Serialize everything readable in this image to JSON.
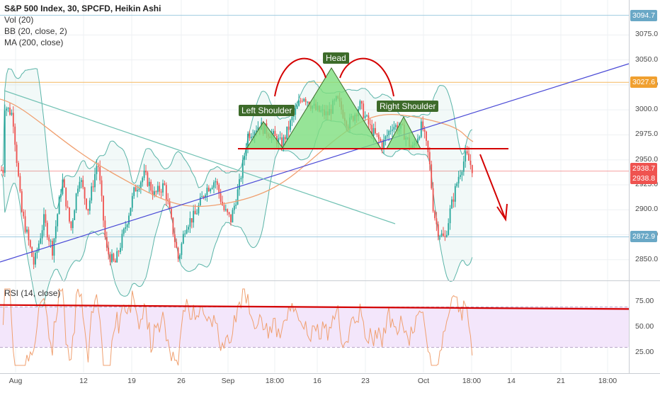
{
  "legend": {
    "title": "S&P 500 Index, 30, SPCFD, Heikin Ashi",
    "vol": "Vol (20)",
    "bb": "BB (20, close, 2)",
    "ma": "MA (200, close)"
  },
  "rsi_legend": "RSI (14, close)",
  "annotations": {
    "left_shoulder": "Left Shoulder",
    "head": "Head",
    "right_shoulder": "Right Shoulder"
  },
  "colors": {
    "up": "#26a69a",
    "down": "#ef5350",
    "trendline_blue": "#4a4ad6",
    "trendline_teal": "#72c2b4",
    "ma": "#f0a070",
    "neckline": "#d40000",
    "pattern_fill": "#7ede7e",
    "label_bg": "#3d6b2a",
    "rsi_line": "#f0a070",
    "rsi_band": "#f3e6fb"
  },
  "chart_data": [
    {
      "type": "candlestick",
      "title": "S&P 500 Index, 30, SPCFD, Heikin Ashi",
      "y_ticks": [
        2850.0,
        2875.0,
        2900.0,
        2925.0,
        2950.0,
        2975.0,
        3000.0,
        3025.0,
        3050.0,
        3075.0
      ],
      "ylim": [
        2830,
        3110
      ],
      "x_ticks": [
        "Aug",
        "12",
        "19",
        "26",
        "Sep",
        "18:00",
        "16",
        "23",
        "Oct",
        "18:00",
        "14",
        "21",
        "18:00"
      ],
      "price_tags": [
        {
          "label": "3094.7",
          "value": 3094.7,
          "color": "#6aa8c6"
        },
        {
          "label": "3027.6",
          "value": 3027.6,
          "color": "#f0a030"
        },
        {
          "label": "2938.7",
          "value": 2938.7,
          "color": "#ef5350"
        },
        {
          "label": "2938.8",
          "value": 2938.8,
          "color": "#ef5350"
        },
        {
          "label": "2872.9",
          "value": 2872.9,
          "color": "#6aa8c6"
        }
      ],
      "horizontal_levels": [
        3094.7,
        3027.6,
        2938.7,
        2872.9
      ],
      "neckline": 2960
    },
    {
      "type": "line",
      "title": "RSI (14, close)",
      "y_ticks": [
        25.0,
        50.0,
        75.0
      ],
      "ylim": [
        5,
        95
      ],
      "band": [
        30,
        70
      ]
    }
  ]
}
